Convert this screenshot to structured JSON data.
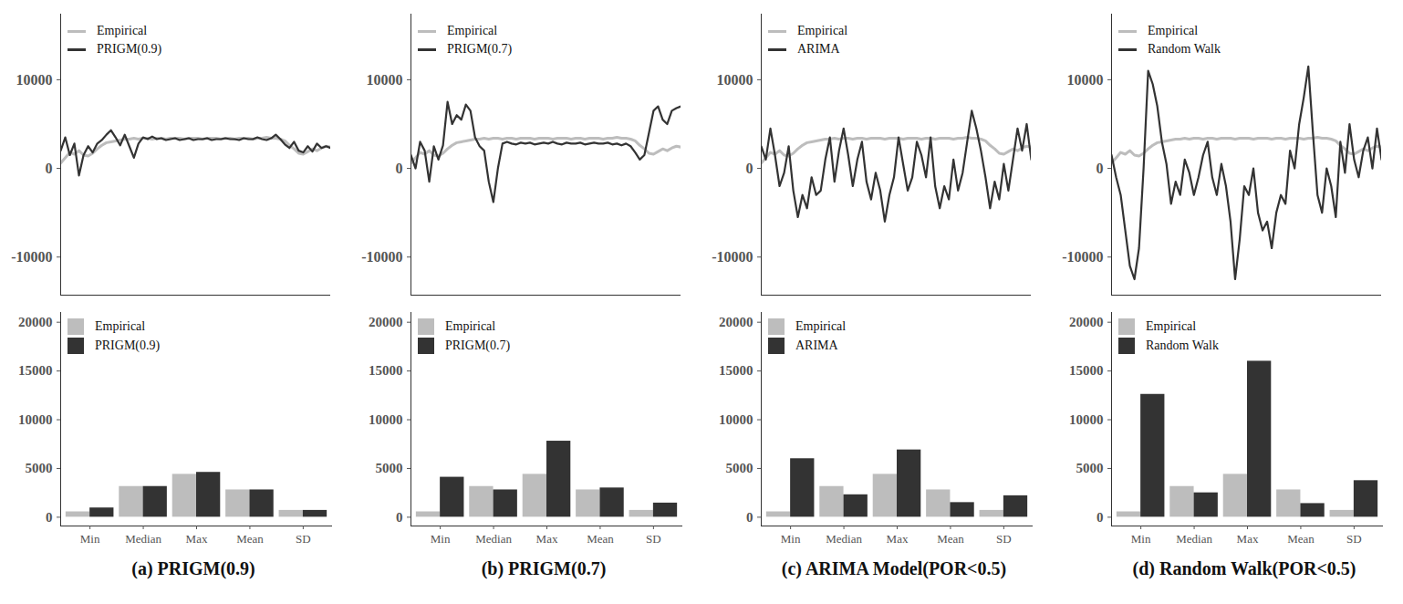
{
  "chart_data": [
    {
      "type": "line",
      "x": [
        1,
        2,
        3,
        4,
        5,
        6,
        7,
        8,
        9,
        10,
        11,
        12,
        13,
        14,
        15,
        16,
        17,
        18,
        19,
        20,
        21,
        22,
        23,
        24,
        25,
        26,
        27,
        28,
        29,
        30,
        31,
        32,
        33,
        34,
        35,
        36,
        37,
        38,
        39,
        40,
        41,
        42,
        43,
        44,
        45,
        46,
        47,
        48,
        49,
        50,
        51,
        52,
        53,
        54,
        55,
        56,
        57,
        58,
        59,
        60
      ],
      "xlim": [
        1,
        60
      ],
      "xticks": [],
      "ylim": [
        -14300,
        17400
      ],
      "yticks": [
        -10000,
        0,
        10000
      ],
      "tick_labels": "y",
      "grid": false,
      "legend": "top-left",
      "series": [
        {
          "name": "Empirical",
          "color": "#bdbdbd",
          "values": [
            600,
            1200,
            1800,
            1600,
            2000,
            1500,
            1400,
            1700,
            2200,
            2600,
            2900,
            3000,
            3100,
            3200,
            3300,
            3300,
            3400,
            3300,
            3400,
            3400,
            3300,
            3400,
            3400,
            3300,
            3400,
            3400,
            3400,
            3300,
            3400,
            3400,
            3400,
            3300,
            3400,
            3400,
            3400,
            3300,
            3400,
            3400,
            3300,
            3400,
            3400,
            3400,
            3300,
            3400,
            3400,
            3500,
            3400,
            3400,
            3300,
            3100,
            2600,
            2200,
            1700,
            1600,
            1900,
            2200,
            2000,
            2300,
            2500,
            2400
          ]
        },
        {
          "name": "PRIGM(0.9)",
          "color": "#333333",
          "values": [
            2000,
            3500,
            1500,
            2800,
            -800,
            1500,
            2500,
            1800,
            2800,
            3200,
            3800,
            4300,
            3500,
            2600,
            3800,
            2500,
            1200,
            2800,
            3500,
            3300,
            3600,
            3300,
            3400,
            3200,
            3300,
            3400,
            3200,
            3300,
            3400,
            3200,
            3300,
            3300,
            3400,
            3200,
            3300,
            3300,
            3400,
            3300,
            3300,
            3200,
            3400,
            3300,
            3300,
            3500,
            3300,
            3200,
            3400,
            3800,
            3300,
            2700,
            2300,
            3000,
            2000,
            1800,
            2500,
            1900,
            2800,
            2300,
            2500,
            2300
          ]
        }
      ]
    },
    {
      "type": "bar",
      "title": "(a) PRIGM(0.9)",
      "categories": [
        "Min",
        "Median",
        "Max",
        "Mean",
        "SD"
      ],
      "ylim": [
        -900,
        21000
      ],
      "yticks": [
        0,
        5000,
        10000,
        15000,
        20000
      ],
      "grid": false,
      "legend": "top-left",
      "series": [
        {
          "name": "Empirical",
          "color": "#bdbdbd",
          "values": [
            550,
            3150,
            4400,
            2800,
            700
          ]
        },
        {
          "name": "PRIGM(0.9)",
          "color": "#333333",
          "values": [
            950,
            3150,
            4600,
            2800,
            700
          ]
        }
      ]
    },
    {
      "type": "line",
      "x": [
        1,
        2,
        3,
        4,
        5,
        6,
        7,
        8,
        9,
        10,
        11,
        12,
        13,
        14,
        15,
        16,
        17,
        18,
        19,
        20,
        21,
        22,
        23,
        24,
        25,
        26,
        27,
        28,
        29,
        30,
        31,
        32,
        33,
        34,
        35,
        36,
        37,
        38,
        39,
        40,
        41,
        42,
        43,
        44,
        45,
        46,
        47,
        48,
        49,
        50,
        51,
        52,
        53,
        54,
        55,
        56,
        57,
        58,
        59,
        60
      ],
      "xlim": [
        1,
        60
      ],
      "xticks": [],
      "ylim": [
        -14300,
        17400
      ],
      "yticks": [
        -10000,
        0,
        10000
      ],
      "tick_labels": "y",
      "grid": false,
      "legend": "top-left",
      "series": [
        {
          "name": "Empirical",
          "color": "#bdbdbd",
          "values": [
            600,
            1200,
            1800,
            1600,
            2000,
            1500,
            1400,
            1700,
            2200,
            2600,
            2900,
            3000,
            3100,
            3200,
            3300,
            3300,
            3400,
            3300,
            3400,
            3400,
            3300,
            3400,
            3400,
            3300,
            3400,
            3400,
            3400,
            3300,
            3400,
            3400,
            3400,
            3300,
            3400,
            3400,
            3400,
            3300,
            3400,
            3400,
            3300,
            3400,
            3400,
            3400,
            3300,
            3400,
            3400,
            3500,
            3400,
            3400,
            3300,
            3100,
            2600,
            2200,
            1700,
            1600,
            1900,
            2200,
            2000,
            2300,
            2500,
            2400
          ]
        },
        {
          "name": "PRIGM(0.7)",
          "color": "#333333",
          "values": [
            1500,
            0,
            3000,
            2000,
            -1500,
            2500,
            1000,
            2600,
            7500,
            5000,
            6000,
            5500,
            7200,
            6500,
            3500,
            2500,
            2000,
            -1500,
            -3800,
            0,
            2800,
            3000,
            2800,
            2700,
            2900,
            2800,
            2900,
            2700,
            2800,
            2900,
            2800,
            3000,
            2800,
            2700,
            2900,
            2800,
            2800,
            2900,
            2700,
            2800,
            2900,
            2800,
            2800,
            2900,
            2700,
            2800,
            2600,
            2800,
            2500,
            1800,
            1000,
            1500,
            4000,
            6500,
            7000,
            5500,
            5000,
            6500,
            6800,
            7000
          ]
        }
      ]
    },
    {
      "type": "bar",
      "title": "(b) PRIGM(0.7)",
      "categories": [
        "Min",
        "Median",
        "Max",
        "Mean",
        "SD"
      ],
      "ylim": [
        -900,
        21000
      ],
      "yticks": [
        0,
        5000,
        10000,
        15000,
        20000
      ],
      "grid": false,
      "legend": "top-left",
      "series": [
        {
          "name": "Empirical",
          "color": "#bdbdbd",
          "values": [
            550,
            3150,
            4400,
            2800,
            700
          ]
        },
        {
          "name": "PRIGM(0.7)",
          "color": "#333333",
          "values": [
            4100,
            2800,
            7800,
            3000,
            1450
          ]
        }
      ]
    },
    {
      "type": "line",
      "x": [
        1,
        2,
        3,
        4,
        5,
        6,
        7,
        8,
        9,
        10,
        11,
        12,
        13,
        14,
        15,
        16,
        17,
        18,
        19,
        20,
        21,
        22,
        23,
        24,
        25,
        26,
        27,
        28,
        29,
        30,
        31,
        32,
        33,
        34,
        35,
        36,
        37,
        38,
        39,
        40,
        41,
        42,
        43,
        44,
        45,
        46,
        47,
        48,
        49,
        50,
        51,
        52,
        53,
        54,
        55,
        56,
        57,
        58,
        59,
        60
      ],
      "xlim": [
        1,
        60
      ],
      "xticks": [],
      "ylim": [
        -14300,
        17400
      ],
      "yticks": [
        -10000,
        0,
        10000
      ],
      "tick_labels": "y",
      "grid": false,
      "legend": "top-left",
      "series": [
        {
          "name": "Empirical",
          "color": "#bdbdbd",
          "values": [
            600,
            1200,
            1800,
            1600,
            2000,
            1500,
            1400,
            1700,
            2200,
            2600,
            2900,
            3000,
            3100,
            3200,
            3300,
            3300,
            3400,
            3300,
            3400,
            3400,
            3300,
            3400,
            3400,
            3300,
            3400,
            3400,
            3400,
            3300,
            3400,
            3400,
            3400,
            3300,
            3400,
            3400,
            3400,
            3300,
            3400,
            3400,
            3300,
            3400,
            3400,
            3400,
            3300,
            3400,
            3400,
            3500,
            3400,
            3400,
            3300,
            3100,
            2600,
            2200,
            1700,
            1600,
            1900,
            2200,
            2000,
            2300,
            2500,
            2400
          ]
        },
        {
          "name": "ARIMA",
          "color": "#333333",
          "values": [
            2500,
            1000,
            4500,
            1500,
            -2000,
            -500,
            2500,
            -2500,
            -5500,
            -3000,
            -4500,
            -1000,
            -3000,
            -2500,
            1000,
            3500,
            -1500,
            2000,
            4500,
            1500,
            -2000,
            1000,
            3000,
            -1500,
            -3500,
            -500,
            -2500,
            -6000,
            -3000,
            -1000,
            3500,
            500,
            -2500,
            -1000,
            3000,
            1500,
            -1000,
            3500,
            -2000,
            -4500,
            -2000,
            -3500,
            1000,
            -2500,
            -500,
            3000,
            6500,
            4500,
            2000,
            -1000,
            -4500,
            -1500,
            -3500,
            500,
            -2500,
            1000,
            4500,
            2000,
            5000,
            1000
          ]
        }
      ]
    },
    {
      "type": "bar",
      "title": "(c) ARIMA Model(POR<0.5)",
      "categories": [
        "Min",
        "Median",
        "Max",
        "Mean",
        "SD"
      ],
      "ylim": [
        -900,
        21000
      ],
      "yticks": [
        0,
        5000,
        10000,
        15000,
        20000
      ],
      "grid": false,
      "legend": "top-left",
      "series": [
        {
          "name": "Empirical",
          "color": "#bdbdbd",
          "values": [
            550,
            3150,
            4400,
            2800,
            700
          ]
        },
        {
          "name": "ARIMA",
          "color": "#333333",
          "values": [
            6000,
            2300,
            6900,
            1500,
            2200
          ]
        }
      ]
    },
    {
      "type": "line",
      "x": [
        1,
        2,
        3,
        4,
        5,
        6,
        7,
        8,
        9,
        10,
        11,
        12,
        13,
        14,
        15,
        16,
        17,
        18,
        19,
        20,
        21,
        22,
        23,
        24,
        25,
        26,
        27,
        28,
        29,
        30,
        31,
        32,
        33,
        34,
        35,
        36,
        37,
        38,
        39,
        40,
        41,
        42,
        43,
        44,
        45,
        46,
        47,
        48,
        49,
        50,
        51,
        52,
        53,
        54,
        55,
        56,
        57,
        58,
        59,
        60
      ],
      "xlim": [
        1,
        60
      ],
      "xticks": [],
      "ylim": [
        -14300,
        17400
      ],
      "yticks": [
        -10000,
        0,
        10000
      ],
      "tick_labels": "y",
      "grid": false,
      "legend": "top-left",
      "series": [
        {
          "name": "Empirical",
          "color": "#bdbdbd",
          "values": [
            600,
            1200,
            1800,
            1600,
            2000,
            1500,
            1400,
            1700,
            2200,
            2600,
            2900,
            3000,
            3100,
            3200,
            3300,
            3300,
            3400,
            3300,
            3400,
            3400,
            3300,
            3400,
            3400,
            3300,
            3400,
            3400,
            3400,
            3300,
            3400,
            3400,
            3400,
            3300,
            3400,
            3400,
            3400,
            3300,
            3400,
            3400,
            3300,
            3400,
            3400,
            3400,
            3300,
            3400,
            3400,
            3500,
            3400,
            3400,
            3300,
            3100,
            2600,
            2200,
            1700,
            1600,
            1900,
            2200,
            2000,
            2300,
            2500,
            2400
          ]
        },
        {
          "name": "Random Walk",
          "color": "#333333",
          "values": [
            1500,
            -1000,
            -3000,
            -7000,
            -11000,
            -12500,
            -9000,
            0,
            11000,
            9500,
            7000,
            3000,
            500,
            -4000,
            -1500,
            -3000,
            1000,
            -500,
            -3000,
            -1000,
            1500,
            3000,
            -1000,
            -3000,
            500,
            -2000,
            -6000,
            -12500,
            -8000,
            -2000,
            -3000,
            0,
            -5000,
            -7000,
            -6000,
            -9000,
            -5000,
            -3000,
            -4000,
            2000,
            0,
            5000,
            8000,
            11500,
            4000,
            -3000,
            -5000,
            0,
            -2000,
            -5500,
            3000,
            -500,
            5000,
            1000,
            -1000,
            2000,
            3500,
            0,
            4500,
            1000
          ]
        }
      ]
    },
    {
      "type": "bar",
      "title": "(d) Random Walk(POR<0.5)",
      "categories": [
        "Min",
        "Median",
        "Max",
        "Mean",
        "SD"
      ],
      "ylim": [
        -900,
        21000
      ],
      "yticks": [
        0,
        5000,
        10000,
        15000,
        20000
      ],
      "grid": false,
      "legend": "top-left",
      "series": [
        {
          "name": "Empirical",
          "color": "#bdbdbd",
          "values": [
            550,
            3150,
            4400,
            2800,
            700
          ]
        },
        {
          "name": "Random Walk",
          "color": "#333333",
          "values": [
            12600,
            2500,
            16000,
            1400,
            3750
          ]
        }
      ]
    }
  ]
}
